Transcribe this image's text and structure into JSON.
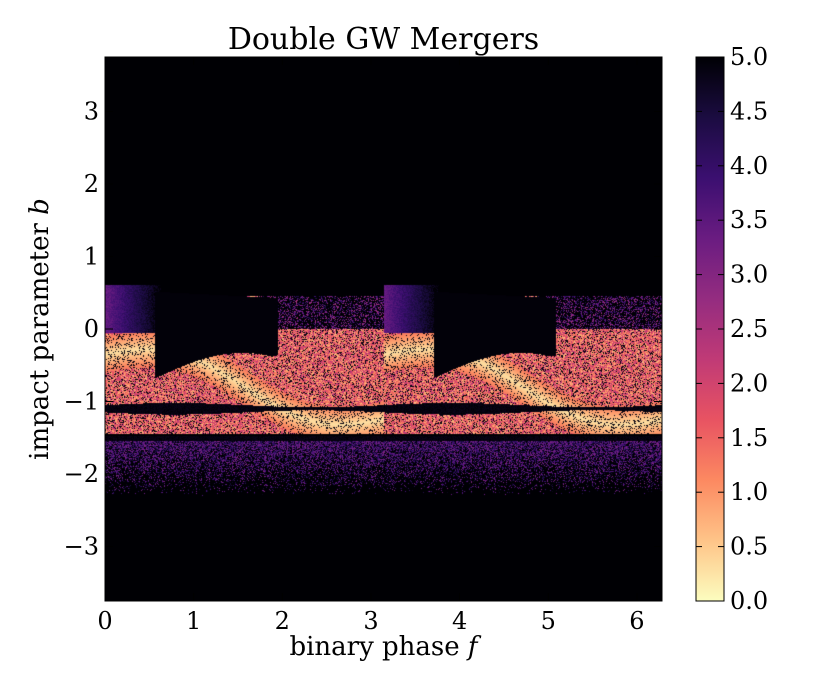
{
  "chart_data": {
    "type": "heatmap",
    "title": "Double GW Mergers",
    "xlabel": "binary phase",
    "xlabel_var": "f",
    "ylabel": "impact parameter",
    "ylabel_var": "b",
    "xlim": [
      0,
      6.283
    ],
    "ylim": [
      -3.75,
      3.75
    ],
    "x_ticks": [
      0,
      1,
      2,
      3,
      4,
      5,
      6
    ],
    "y_ticks": [
      -3,
      -2,
      -1,
      0,
      1,
      2,
      3
    ],
    "x_tick_labels": [
      "0",
      "1",
      "2",
      "3",
      "4",
      "5",
      "6"
    ],
    "y_tick_labels": [
      "−3",
      "−2",
      "−1",
      "0",
      "1",
      "2",
      "3"
    ],
    "colormap": "magma_r",
    "colorbar": {
      "range": [
        0.0,
        5.0
      ],
      "ticks": [
        0.0,
        0.5,
        1.0,
        1.5,
        2.0,
        2.5,
        3.0,
        3.5,
        4.0,
        4.5,
        5.0
      ],
      "tick_labels": [
        "0.0",
        "0.5",
        "1.0",
        "1.5",
        "2.0",
        "2.5",
        "3.0",
        "3.5",
        "4.0",
        "4.5",
        "5.0"
      ]
    },
    "colormap_stops": [
      "#fcfdbf",
      "#fec488",
      "#fc8961",
      "#e85362",
      "#c03a76",
      "#942c80",
      "#6a1c81",
      "#3b0f70",
      "#1b0c41",
      "#000004"
    ],
    "background_value": 5.0,
    "period_in_x": 3.1416
  }
}
